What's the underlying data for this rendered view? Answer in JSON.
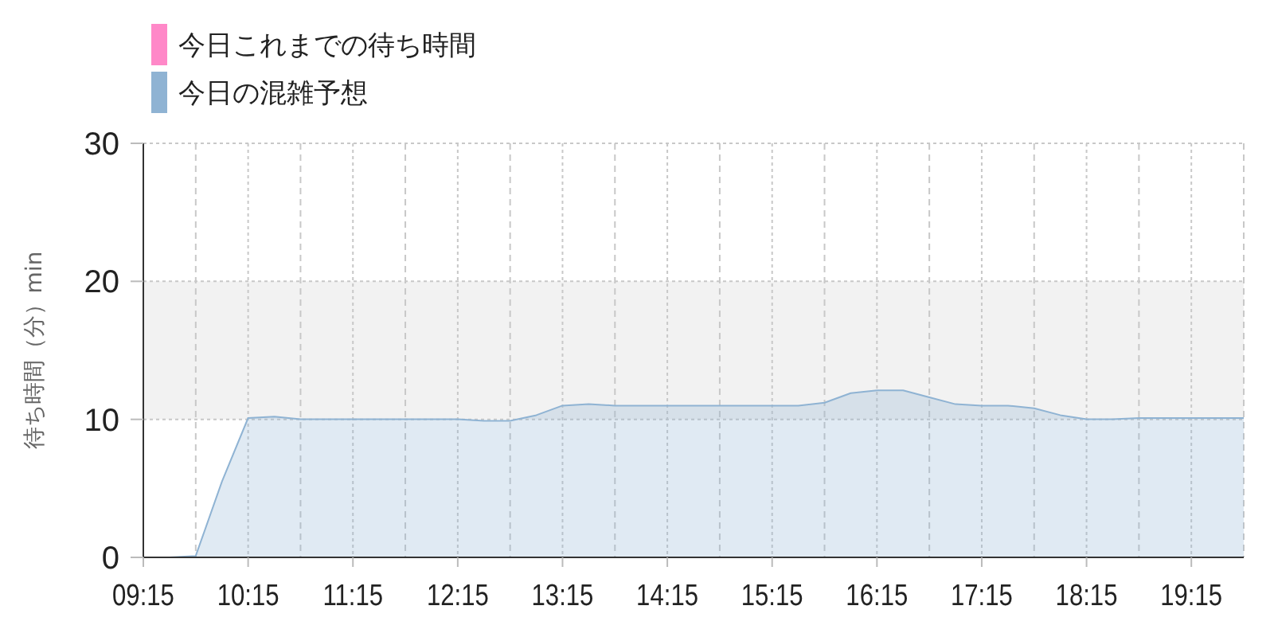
{
  "chart_data": {
    "type": "area",
    "ylabel": "待ち時間（分）min",
    "xlim": [
      9.25,
      19.75
    ],
    "xticks": [
      {
        "value": 9.25,
        "label": "09:15"
      },
      {
        "value": 9.75,
        "label": null
      },
      {
        "value": 10.25,
        "label": "10:15"
      },
      {
        "value": 10.75,
        "label": null
      },
      {
        "value": 11.25,
        "label": "11:15"
      },
      {
        "value": 11.75,
        "label": null
      },
      {
        "value": 12.25,
        "label": "12:15"
      },
      {
        "value": 12.75,
        "label": null
      },
      {
        "value": 13.25,
        "label": "13:15"
      },
      {
        "value": 13.75,
        "label": null
      },
      {
        "value": 14.25,
        "label": "14:15"
      },
      {
        "value": 14.75,
        "label": null
      },
      {
        "value": 15.25,
        "label": "15:15"
      },
      {
        "value": 15.75,
        "label": null
      },
      {
        "value": 16.25,
        "label": "16:15"
      },
      {
        "value": 16.75,
        "label": null
      },
      {
        "value": 17.25,
        "label": "17:15"
      },
      {
        "value": 17.75,
        "label": null
      },
      {
        "value": 18.25,
        "label": "18:15"
      },
      {
        "value": 18.75,
        "label": null
      },
      {
        "value": 19.25,
        "label": "19:15"
      },
      {
        "value": 19.75,
        "label": null
      }
    ],
    "ylim": [
      0,
      30
    ],
    "yticks": [
      0,
      10,
      20,
      30
    ],
    "grid": true,
    "legend": "top left",
    "bands": [
      {
        "axis": "y",
        "from": 10,
        "to": 20,
        "color": "#f2f2f2"
      }
    ],
    "x": [
      9.25,
      9.5,
      9.75,
      10.0,
      10.25,
      10.5,
      10.75,
      11.0,
      11.25,
      11.5,
      11.75,
      12.0,
      12.25,
      12.5,
      12.75,
      13.0,
      13.25,
      13.5,
      13.75,
      14.0,
      14.25,
      14.5,
      14.75,
      15.0,
      15.25,
      15.5,
      15.75,
      16.0,
      16.25,
      16.5,
      16.75,
      17.0,
      17.25,
      17.5,
      17.75,
      18.0,
      18.25,
      18.5,
      18.75,
      19.0,
      19.25,
      19.5,
      19.75
    ],
    "series": [
      {
        "name": "今日これまでの待ち時間",
        "color": "#ff88c8",
        "values": [
          null,
          null,
          null,
          null,
          null,
          null,
          null,
          null,
          null,
          null,
          null,
          null,
          null,
          null,
          null,
          null,
          null,
          null,
          null,
          null,
          null,
          null,
          null,
          null,
          null,
          null,
          null,
          null,
          null,
          null,
          null,
          null,
          null,
          null,
          null,
          null,
          null,
          null,
          null,
          null,
          null,
          null,
          null
        ]
      },
      {
        "name": "今日の混雑予想",
        "color": "#8fb3d3",
        "values": [
          0,
          0,
          0.1,
          5.5,
          10.1,
          10.2,
          10,
          10,
          10,
          10,
          10,
          10,
          10,
          9.9,
          9.9,
          10.3,
          11,
          11.1,
          11,
          11,
          11,
          11,
          11,
          11,
          11,
          11,
          11.2,
          11.9,
          12.1,
          12.1,
          11.6,
          11.1,
          11,
          11,
          10.8,
          10.3,
          10,
          10,
          10.1,
          10.1,
          10.1,
          10.1,
          10.1
        ]
      }
    ]
  }
}
